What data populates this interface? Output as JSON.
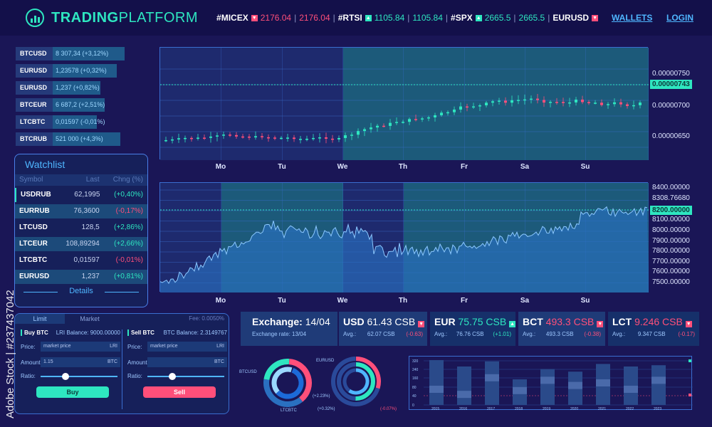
{
  "header": {
    "logo_bold": "TRADING",
    "logo_light": "PLATFORM",
    "tickers": [
      {
        "name": "#MICEX",
        "dir": "down",
        "v1": "2176.04",
        "v2": "2176.04",
        "color": "red"
      },
      {
        "name": "#RTSI",
        "dir": "up",
        "v1": "1105.84",
        "v2": "1105.84",
        "color": "green"
      },
      {
        "name": "#SPX",
        "dir": "up",
        "v1": "2665.5",
        "v2": "2665.5",
        "color": "green"
      },
      {
        "name": "EURUSD",
        "dir": "down",
        "v1": "",
        "v2": "",
        "color": "red"
      }
    ],
    "wallets": "WALLETS",
    "login": "LOGIN"
  },
  "left_list": [
    {
      "name": "BTCUSD",
      "value": "8 307,34  (+3,12%)",
      "fill": 0.9
    },
    {
      "name": "EURUSD",
      "value": "1,23578  (+0,32%)",
      "fill": 0.8
    },
    {
      "name": "EURUSD",
      "value": "1,237  (+0,82%)",
      "fill": 0.6
    },
    {
      "name": "BTCEUR",
      "value": "6 687,2  (+2,51%)",
      "fill": 0.65
    },
    {
      "name": "LTCBTC",
      "value": "0,01597  (-0,01%)",
      "fill": 0.55
    },
    {
      "name": "BTCRUB",
      "value": "521 000  (+4,3%)",
      "fill": 0.85
    }
  ],
  "watchlist": {
    "title": "Watchlist",
    "headers": [
      "Symbol",
      "Last",
      "Chng (%)"
    ],
    "rows": [
      {
        "symbol": "USDRUB",
        "last": "62,1995",
        "chng": "(+0,40%)",
        "up": true
      },
      {
        "symbol": "EURRUB",
        "last": "76,3600",
        "chng": "(-0,17%)",
        "up": false
      },
      {
        "symbol": "LTCUSD",
        "last": "128,5",
        "chng": "(+2,86%)",
        "up": true
      },
      {
        "symbol": "LTCEUR",
        "last": "108,89294",
        "chng": "(+2,66%)",
        "up": true
      },
      {
        "symbol": "LTCBTC",
        "last": "0,01597",
        "chng": "(-0,01%)",
        "up": false
      },
      {
        "symbol": "EURUSD",
        "last": "1,237",
        "chng": "(+0,81%)",
        "up": true
      }
    ],
    "details": "Details"
  },
  "charts": {
    "days": [
      "Mo",
      "Tu",
      "We",
      "Th",
      "Fr",
      "Sa",
      "Su"
    ],
    "candle_y": [
      "0.00000750",
      "0.00000700",
      "0.00000650"
    ],
    "candle_tag": "0.00000743",
    "area_y": [
      "8400.00000",
      "8308.76680",
      "8100.00000",
      "8000.00000",
      "7900.00000",
      "7800.00000",
      "7700.00000",
      "7600.00000",
      "7500.00000"
    ],
    "area_tag": "8200.00000"
  },
  "order": {
    "tab_limit": "Limit",
    "tab_market": "Market",
    "fee": "Fee: 0.0050%",
    "buy": {
      "title": "Buy BTC",
      "balance": "LRI Balance: 9000.00000",
      "price_label": "Price:",
      "price_ph": "market price",
      "price_unit": "LRI",
      "amount_label": "Amount:",
      "amount": "1.15",
      "amount_unit": "BTC",
      "ratio_label": "Ratio:",
      "button": "Buy"
    },
    "sell": {
      "title": "Sell BTC",
      "balance": "BTC Balance: 2.3149767",
      "price_label": "Price:",
      "price_ph": "market price",
      "price_unit": "LRI",
      "amount_label": "Amount:",
      "amount": "",
      "amount_unit": "BTC",
      "ratio_label": "Ratio:",
      "button": "Sell"
    }
  },
  "exchange": {
    "title": "Exchange:",
    "date": "14/04",
    "rate_label": "Exchange rate: 13/04"
  },
  "currencies": [
    {
      "code": "USD",
      "value": "61.43 CSB",
      "dir": "down",
      "avg_label": "Avg.:",
      "avg": "62.07 CSB",
      "chg": "(-0.63)",
      "up": false
    },
    {
      "code": "EUR",
      "value": "75.75 CSB",
      "dir": "up",
      "avg_label": "Avg.:",
      "avg": "76.76 CSB",
      "chg": "(+1.01)",
      "up": true
    },
    {
      "code": "BCT",
      "value": "493.3 CSB",
      "dir": "down",
      "avg_label": "Avg.:",
      "avg": "493.3 CSB",
      "chg": "(-0.38)",
      "up": false
    },
    {
      "code": "LCT",
      "value": "9.246 CSB",
      "dir": "down",
      "avg_label": "Avg.:",
      "avg": "9.347 CSB",
      "chg": "(-0.17)",
      "up": false
    }
  ],
  "donuts": {
    "labels_left": [
      "BTCUSD",
      "EURUSD",
      "LTCBTC"
    ],
    "labels_right": [
      "(+2.23%)",
      "(+0.32%)",
      "(-0.07%)"
    ]
  },
  "bars": {
    "years": [
      "2015",
      "2016",
      "2017",
      "2018",
      "2019",
      "2020",
      "2021",
      "2022",
      "2023"
    ],
    "y_ticks": [
      "320",
      "240",
      "160",
      "80",
      "40",
      "0"
    ]
  },
  "watermark": "Adobe Stock | #237437042",
  "colors": {
    "accent": "#2ee6c0",
    "negative": "#ff4f7a",
    "link": "#4fb6ff",
    "bg": "#1a1656"
  }
}
